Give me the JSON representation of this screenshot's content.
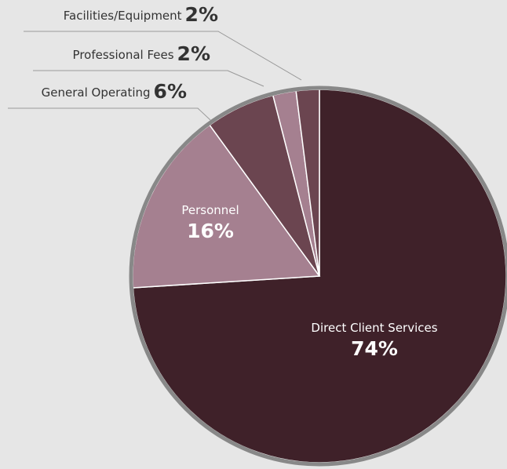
{
  "chart_data": {
    "type": "pie",
    "categories": [
      "Direct Client Services",
      "Personnel",
      "General Operating",
      "Professional Fees",
      "Facilities/Equipment"
    ],
    "values": [
      74,
      16,
      6,
      2,
      2
    ],
    "value_labels": [
      "74%",
      "16%",
      "6%",
      "2%",
      "2%"
    ],
    "colors": [
      "#3f2129",
      "#a58090",
      "#6b4550",
      "#a58090",
      "#6b4550"
    ]
  }
}
